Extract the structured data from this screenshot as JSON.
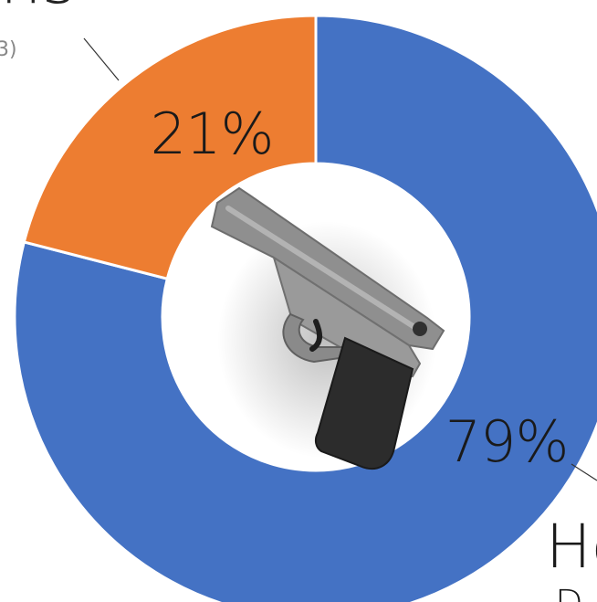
{
  "chart_data": {
    "type": "pie",
    "categories": [
      "",
      ""
    ],
    "values": [
      79,
      21
    ],
    "labels": [
      "79%",
      "21%"
    ],
    "colors": [
      "#4472C4",
      "#ED7D31"
    ],
    "hole": true,
    "title": ""
  },
  "center_icon": "handgun-icon",
  "cut_off_text": {
    "top_left": "ns",
    "top_left_sub": "3)",
    "bottom_right": "Ho",
    "bottom_right_sub": "D"
  }
}
